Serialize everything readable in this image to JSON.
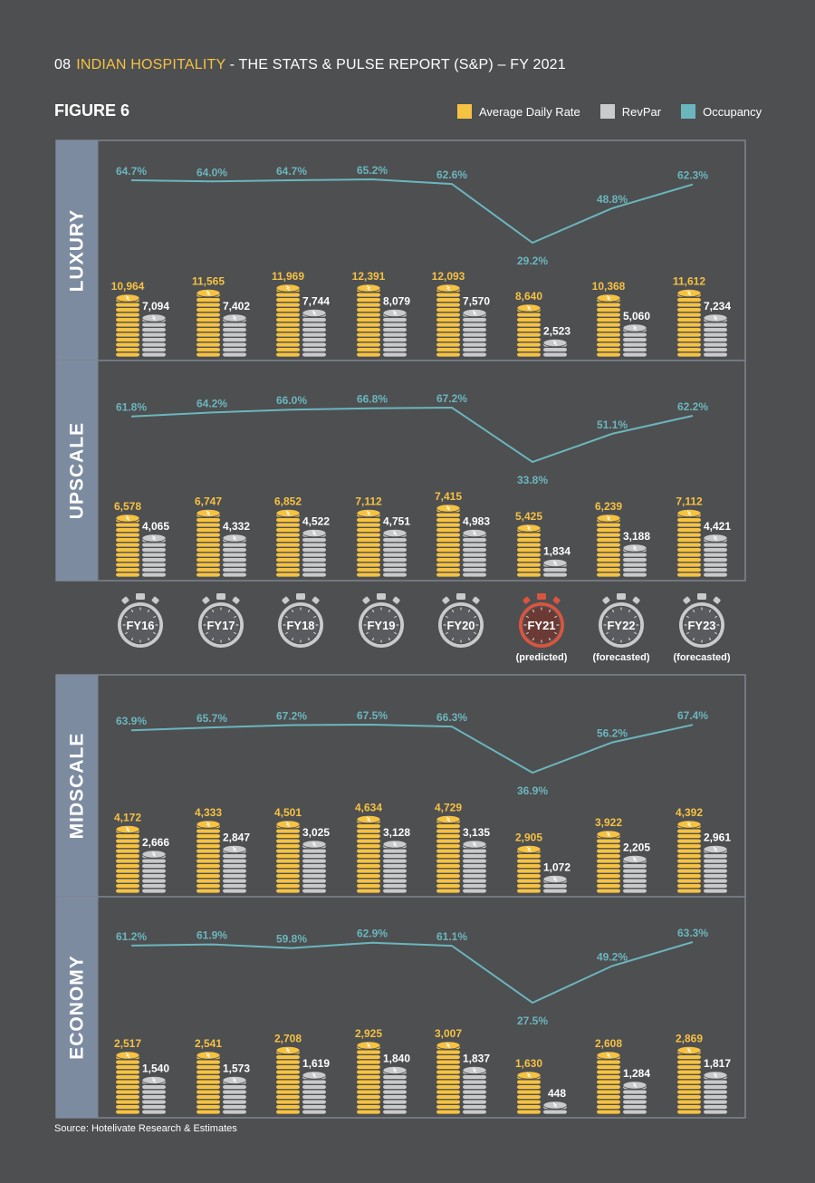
{
  "header": {
    "page_number": "08",
    "highlight": "INDIAN HOSPITALITY",
    "title_rest": " - THE STATS & PULSE REPORT (S&P) – FY 2021"
  },
  "figure_title": "FIGURE 6",
  "legend": [
    {
      "label": "Average Daily Rate",
      "color": "#f5c242"
    },
    {
      "label": "RevPar",
      "color": "#c9cacb"
    },
    {
      "label": "Occupancy",
      "color": "#6bb6bd"
    }
  ],
  "source": "Source: Hotelivate Research & Estimates",
  "timeline": {
    "years": [
      "FY16",
      "FY17",
      "FY18",
      "FY19",
      "FY20",
      "FY21",
      "FY22",
      "FY23"
    ],
    "notes": [
      "",
      "",
      "",
      "",
      "",
      "(predicted)",
      "(forecasted)",
      "(forecasted)"
    ],
    "highlight_index": 5,
    "highlight_color": "#d9553f"
  },
  "colors": {
    "adr": "#f5c242",
    "revpar": "#c9cacb",
    "occupancy": "#6bb6bd",
    "band": "#7c8ba0",
    "line": "#7e8590"
  },
  "chart_data": [
    {
      "type": "bar",
      "segment": "LUXURY",
      "categories": [
        "FY16",
        "FY17",
        "FY18",
        "FY19",
        "FY20",
        "FY21",
        "FY22",
        "FY23"
      ],
      "series": [
        {
          "name": "Average Daily Rate",
          "values": [
            10964,
            11565,
            11969,
            12391,
            12093,
            8640,
            10368,
            11612
          ],
          "labels": [
            "10,964",
            "11,565",
            "11,969",
            "12,391",
            "12,093",
            "8,640",
            "10,368",
            "11,612"
          ]
        },
        {
          "name": "RevPar",
          "values": [
            7094,
            7402,
            7744,
            8079,
            7570,
            2523,
            5060,
            7234
          ],
          "labels": [
            "7,094",
            "7,402",
            "7,744",
            "8,079",
            "7,570",
            "2,523",
            "5,060",
            "7,234"
          ]
        },
        {
          "name": "Occupancy",
          "type": "line",
          "values": [
            64.7,
            64.0,
            64.7,
            65.2,
            62.6,
            29.2,
            48.8,
            62.3
          ],
          "labels": [
            "64.7%",
            "64.0%",
            "64.7%",
            "65.2%",
            "62.6%",
            "29.2%",
            "48.8%",
            "62.3%"
          ]
        }
      ]
    },
    {
      "type": "bar",
      "segment": "UPSCALE",
      "categories": [
        "FY16",
        "FY17",
        "FY18",
        "FY19",
        "FY20",
        "FY21",
        "FY22",
        "FY23"
      ],
      "series": [
        {
          "name": "Average Daily Rate",
          "values": [
            6578,
            6747,
            6852,
            7112,
            7415,
            5425,
            6239,
            7112
          ],
          "labels": [
            "6,578",
            "6,747",
            "6,852",
            "7,112",
            "7,415",
            "5,425",
            "6,239",
            "7,112"
          ]
        },
        {
          "name": "RevPar",
          "values": [
            4065,
            4332,
            4522,
            4751,
            4983,
            1834,
            3188,
            4421
          ],
          "labels": [
            "4,065",
            "4,332",
            "4,522",
            "4,751",
            "4,983",
            "1,834",
            "3,188",
            "4,421"
          ]
        },
        {
          "name": "Occupancy",
          "type": "line",
          "values": [
            61.8,
            64.2,
            66.0,
            66.8,
            67.2,
            33.8,
            51.1,
            62.2
          ],
          "labels": [
            "61.8%",
            "64.2%",
            "66.0%",
            "66.8%",
            "67.2%",
            "33.8%",
            "51.1%",
            "62.2%"
          ]
        }
      ]
    },
    {
      "type": "bar",
      "segment": "MIDSCALE",
      "categories": [
        "FY16",
        "FY17",
        "FY18",
        "FY19",
        "FY20",
        "FY21",
        "FY22",
        "FY23"
      ],
      "series": [
        {
          "name": "Average Daily Rate",
          "values": [
            4172,
            4333,
            4501,
            4634,
            4729,
            2905,
            3922,
            4392
          ],
          "labels": [
            "4,172",
            "4,333",
            "4,501",
            "4,634",
            "4,729",
            "2,905",
            "3,922",
            "4,392"
          ]
        },
        {
          "name": "RevPar",
          "values": [
            2666,
            2847,
            3025,
            3128,
            3135,
            1072,
            2205,
            2961
          ],
          "labels": [
            "2,666",
            "2,847",
            "3,025",
            "3,128",
            "3,135",
            "1,072",
            "2,205",
            "2,961"
          ]
        },
        {
          "name": "Occupancy",
          "type": "line",
          "values": [
            63.9,
            65.7,
            67.2,
            67.5,
            66.3,
            36.9,
            56.2,
            67.4
          ],
          "labels": [
            "63.9%",
            "65.7%",
            "67.2%",
            "67.5%",
            "66.3%",
            "36.9%",
            "56.2%",
            "67.4%"
          ]
        }
      ]
    },
    {
      "type": "bar",
      "segment": "ECONOMY",
      "categories": [
        "FY16",
        "FY17",
        "FY18",
        "FY19",
        "FY20",
        "FY21",
        "FY22",
        "FY23"
      ],
      "series": [
        {
          "name": "Average Daily Rate",
          "values": [
            2517,
            2541,
            2708,
            2925,
            3007,
            1630,
            2608,
            2869
          ],
          "labels": [
            "2,517",
            "2,541",
            "2,708",
            "2,925",
            "3,007",
            "1,630",
            "2,608",
            "2,869"
          ]
        },
        {
          "name": "RevPar",
          "values": [
            1540,
            1573,
            1619,
            1840,
            1837,
            448,
            1284,
            1817
          ],
          "labels": [
            "1,540",
            "1,573",
            "1,619",
            "1,840",
            "1,837",
            "448",
            "1,284",
            "1,817"
          ]
        },
        {
          "name": "Occupancy",
          "type": "line",
          "values": [
            61.2,
            61.9,
            59.8,
            62.9,
            61.1,
            27.5,
            49.2,
            63.3
          ],
          "labels": [
            "61.2%",
            "61.9%",
            "59.8%",
            "62.9%",
            "61.1%",
            "27.5%",
            "49.2%",
            "63.3%"
          ]
        }
      ]
    }
  ]
}
